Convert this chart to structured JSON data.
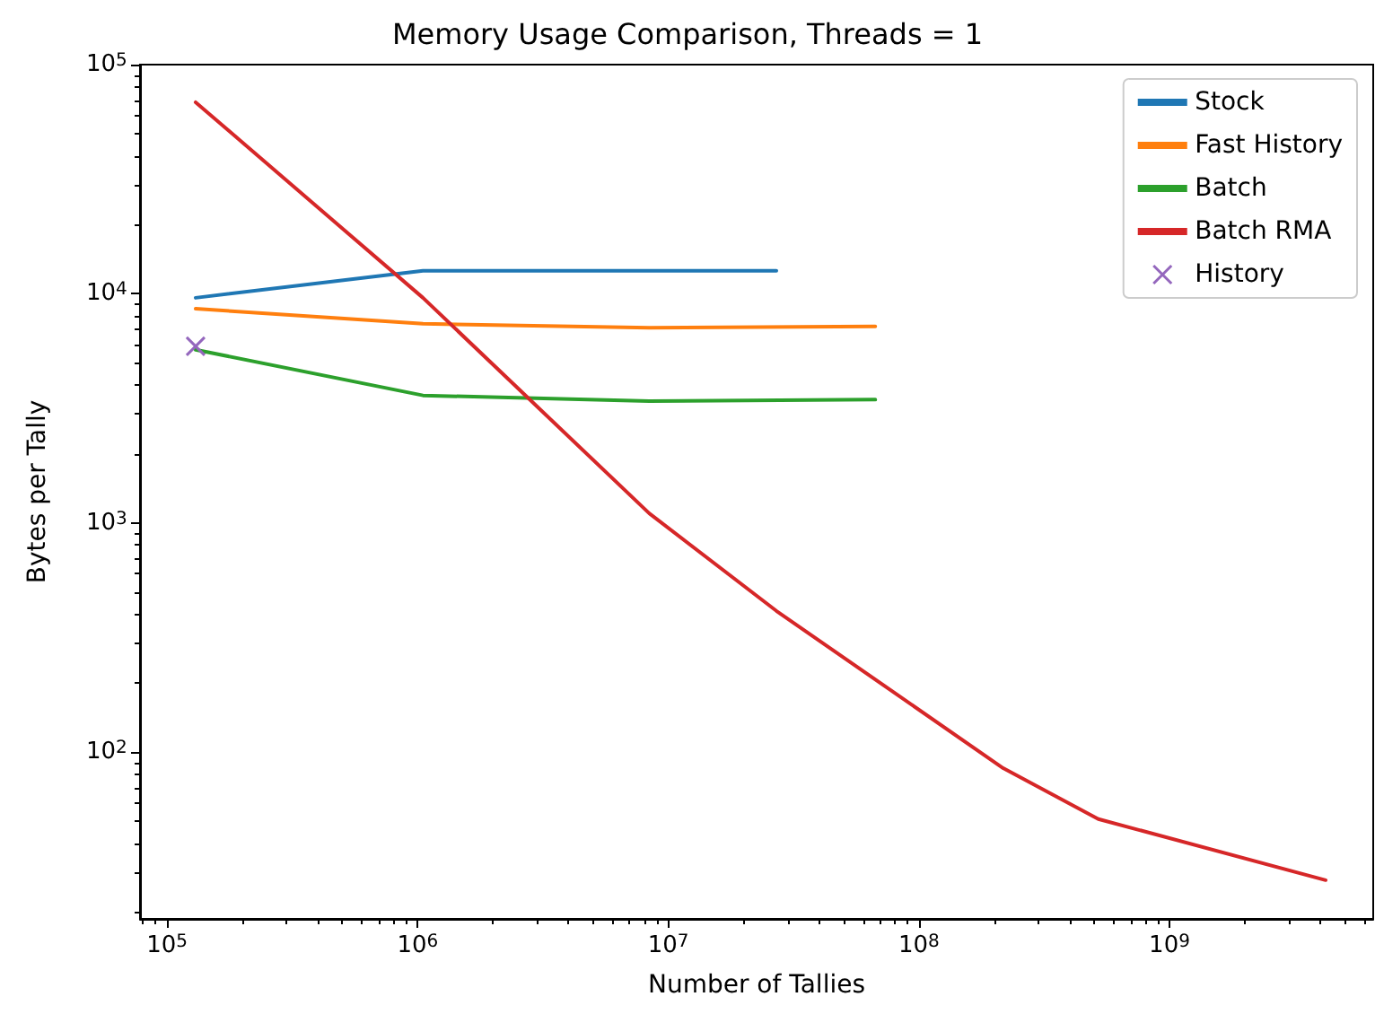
{
  "chart_data": {
    "type": "line",
    "title": "Memory Usage Comparison, Threads = 1",
    "xlabel": "Number of Tallies",
    "ylabel": "Bytes per Tally",
    "log": "xy",
    "grid": false,
    "legend": "top right",
    "xlim": [
      78000,
      6500000000
    ],
    "ylim": [
      18.7,
      100000
    ],
    "xticks": [
      {
        "value": 100000,
        "label": "10$^{5}$"
      },
      {
        "value": 1000000,
        "label": "10$^{6}$"
      },
      {
        "value": 10000000,
        "label": "10$^{7}$"
      },
      {
        "value": 100000000,
        "label": "10$^{8}$"
      },
      {
        "value": 1000000000,
        "label": "10$^{9}$"
      }
    ],
    "yticks": [
      {
        "value": 100,
        "label": "10$^{2}$"
      },
      {
        "value": 1000,
        "label": "10$^{3}$"
      },
      {
        "value": 10000,
        "label": "10$^{4}$"
      },
      {
        "value": 100000,
        "label": "10$^{5}$"
      }
    ],
    "series": [
      {
        "name": "Stock",
        "color": "#1f77b4",
        "marker": "none",
        "x": [
          130000,
          1050000,
          8400000,
          27000000
        ],
        "values": [
          9600,
          12600,
          12600,
          12600
        ]
      },
      {
        "name": "Fast History",
        "color": "#ff7f0e",
        "marker": "none",
        "x": [
          130000,
          1050000,
          8400000,
          67000000
        ],
        "values": [
          8600,
          7400,
          7100,
          7200
        ]
      },
      {
        "name": "Batch",
        "color": "#2ca02c",
        "marker": "none",
        "x": [
          130000,
          1050000,
          8400000,
          67000000
        ],
        "values": [
          5700,
          3600,
          3400,
          3450
        ]
      },
      {
        "name": "Batch RMA",
        "color": "#d62728",
        "marker": "none",
        "x": [
          130000,
          1050000,
          8400000,
          27000000,
          217000000,
          520000000,
          4200000000
        ],
        "values": [
          68500,
          9600,
          1100,
          413,
          85,
          51,
          27.6
        ]
      },
      {
        "name": "History",
        "color": "#9467bd",
        "marker": "cross",
        "x": [
          130000
        ],
        "values": [
          5900
        ]
      }
    ]
  }
}
